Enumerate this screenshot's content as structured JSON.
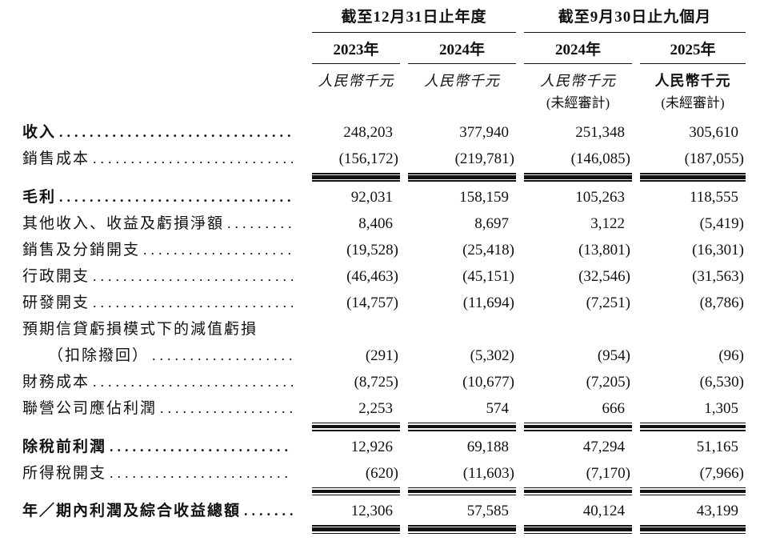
{
  "header": {
    "group_annual": "截至12月31日止年度",
    "group_interim": "截至9月30日止九個月",
    "years": [
      "2023年",
      "2024年",
      "2024年",
      "2025年"
    ],
    "unit": "人民幣千元",
    "unaudited": "(未經審計)"
  },
  "rows": [
    {
      "label": "收入",
      "values": [
        "248,203",
        "377,940",
        "251,348",
        "305,610"
      ]
    },
    {
      "label": "銷售成本",
      "values": [
        "(156,172)",
        "(219,781)",
        "(146,085)",
        "(187,055)"
      ]
    },
    {
      "label": "毛利",
      "values": [
        "92,031",
        "158,159",
        "105,263",
        "118,555"
      ]
    },
    {
      "label": "其他收入、收益及虧損淨額",
      "values": [
        "8,406",
        "8,697",
        "3,122",
        "(5,419)"
      ]
    },
    {
      "label": "銷售及分銷開支",
      "values": [
        "(19,528)",
        "(25,418)",
        "(13,801)",
        "(16,301)"
      ]
    },
    {
      "label": "行政開支",
      "values": [
        "(46,463)",
        "(45,151)",
        "(32,546)",
        "(31,563)"
      ]
    },
    {
      "label": "研發開支",
      "values": [
        "(14,757)",
        "(11,694)",
        "(7,251)",
        "(8,786)"
      ]
    },
    {
      "label": "預期信貸虧損模式下的減值虧損",
      "values": [
        "",
        "",
        "",
        ""
      ]
    },
    {
      "label": "（扣除撥回）",
      "values": [
        "(291)",
        "(5,302)",
        "(954)",
        "(96)"
      ]
    },
    {
      "label": "財務成本",
      "values": [
        "(8,725)",
        "(10,677)",
        "(7,205)",
        "(6,530)"
      ]
    },
    {
      "label": "聯營公司應佔利潤",
      "values": [
        "2,253",
        "574",
        "666",
        "1,305"
      ]
    },
    {
      "label": "除稅前利潤",
      "values": [
        "12,926",
        "69,188",
        "47,294",
        "51,165"
      ]
    },
    {
      "label": "所得稅開支",
      "values": [
        "(620)",
        "(11,603)",
        "(7,170)",
        "(7,966)"
      ]
    },
    {
      "label": "年／期內利潤及綜合收益總額",
      "values": [
        "12,306",
        "57,585",
        "40,124",
        "43,199"
      ]
    }
  ]
}
